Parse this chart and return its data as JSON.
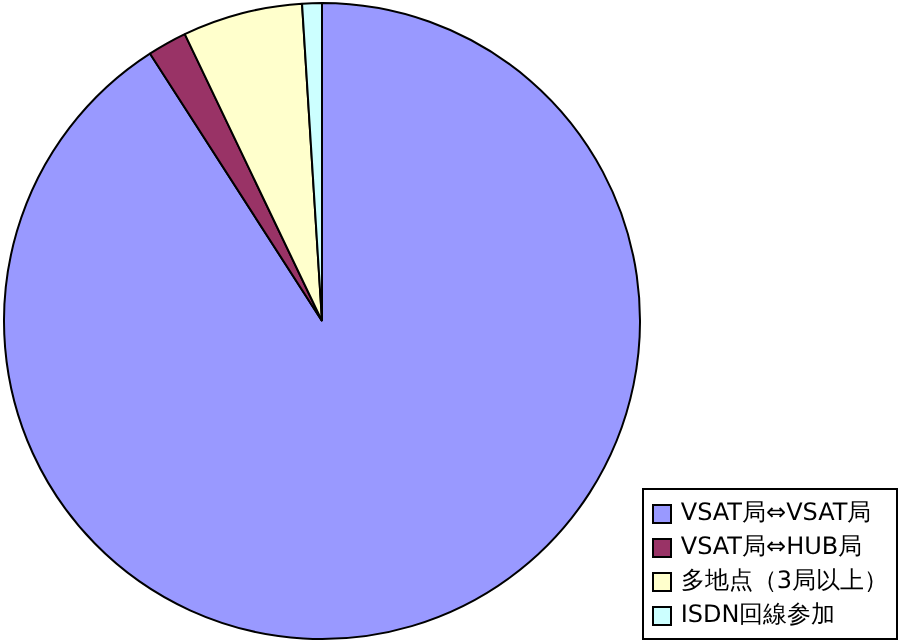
{
  "chart_data": {
    "type": "pie",
    "categories": [
      "VSAT局⇔VSAT局",
      "VSAT局⇔HUB局",
      "多地点（3局以上）",
      "ISDN回線参加"
    ],
    "values": [
      90.9,
      2,
      6.1,
      1
    ],
    "colors": [
      "#9999ff",
      "#993366",
      "#ffffcc",
      "#ccffff"
    ],
    "legend": "bottom right"
  }
}
